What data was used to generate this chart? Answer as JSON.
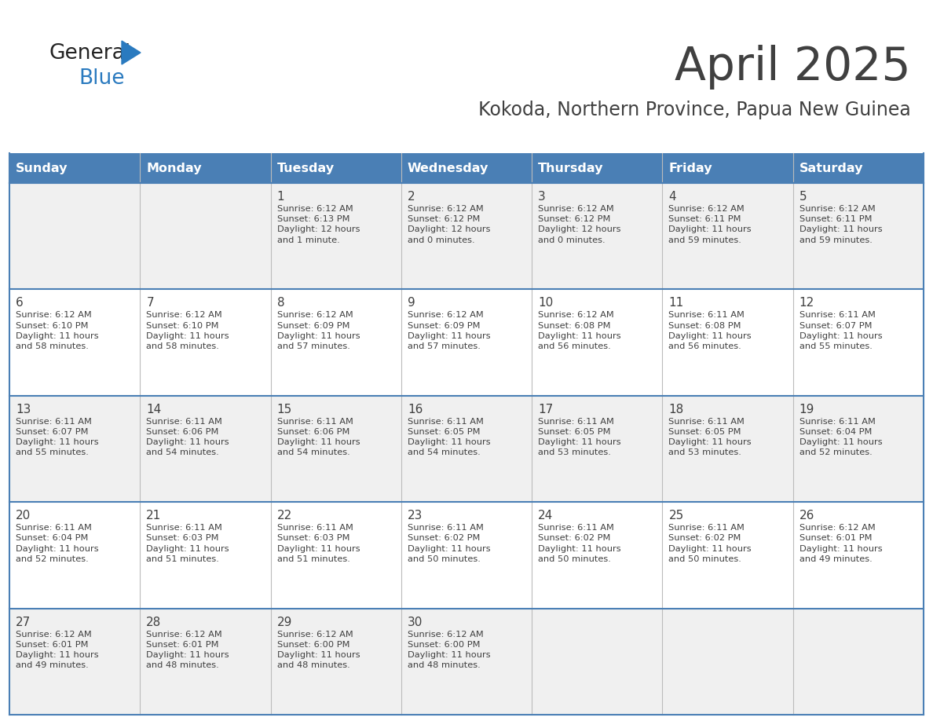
{
  "title": "April 2025",
  "subtitle": "Kokoda, Northern Province, Papua New Guinea",
  "header_color": "#4a7fb5",
  "header_text_color": "#ffffff",
  "cell_bg_white": "#ffffff",
  "cell_bg_gray": "#f0f0f0",
  "border_color": "#4a7fb5",
  "text_color": "#404040",
  "days_of_week": [
    "Sunday",
    "Monday",
    "Tuesday",
    "Wednesday",
    "Thursday",
    "Friday",
    "Saturday"
  ],
  "calendar_data": [
    [
      {
        "day": "",
        "info": ""
      },
      {
        "day": "",
        "info": ""
      },
      {
        "day": "1",
        "info": "Sunrise: 6:12 AM\nSunset: 6:13 PM\nDaylight: 12 hours\nand 1 minute."
      },
      {
        "day": "2",
        "info": "Sunrise: 6:12 AM\nSunset: 6:12 PM\nDaylight: 12 hours\nand 0 minutes."
      },
      {
        "day": "3",
        "info": "Sunrise: 6:12 AM\nSunset: 6:12 PM\nDaylight: 12 hours\nand 0 minutes."
      },
      {
        "day": "4",
        "info": "Sunrise: 6:12 AM\nSunset: 6:11 PM\nDaylight: 11 hours\nand 59 minutes."
      },
      {
        "day": "5",
        "info": "Sunrise: 6:12 AM\nSunset: 6:11 PM\nDaylight: 11 hours\nand 59 minutes."
      }
    ],
    [
      {
        "day": "6",
        "info": "Sunrise: 6:12 AM\nSunset: 6:10 PM\nDaylight: 11 hours\nand 58 minutes."
      },
      {
        "day": "7",
        "info": "Sunrise: 6:12 AM\nSunset: 6:10 PM\nDaylight: 11 hours\nand 58 minutes."
      },
      {
        "day": "8",
        "info": "Sunrise: 6:12 AM\nSunset: 6:09 PM\nDaylight: 11 hours\nand 57 minutes."
      },
      {
        "day": "9",
        "info": "Sunrise: 6:12 AM\nSunset: 6:09 PM\nDaylight: 11 hours\nand 57 minutes."
      },
      {
        "day": "10",
        "info": "Sunrise: 6:12 AM\nSunset: 6:08 PM\nDaylight: 11 hours\nand 56 minutes."
      },
      {
        "day": "11",
        "info": "Sunrise: 6:11 AM\nSunset: 6:08 PM\nDaylight: 11 hours\nand 56 minutes."
      },
      {
        "day": "12",
        "info": "Sunrise: 6:11 AM\nSunset: 6:07 PM\nDaylight: 11 hours\nand 55 minutes."
      }
    ],
    [
      {
        "day": "13",
        "info": "Sunrise: 6:11 AM\nSunset: 6:07 PM\nDaylight: 11 hours\nand 55 minutes."
      },
      {
        "day": "14",
        "info": "Sunrise: 6:11 AM\nSunset: 6:06 PM\nDaylight: 11 hours\nand 54 minutes."
      },
      {
        "day": "15",
        "info": "Sunrise: 6:11 AM\nSunset: 6:06 PM\nDaylight: 11 hours\nand 54 minutes."
      },
      {
        "day": "16",
        "info": "Sunrise: 6:11 AM\nSunset: 6:05 PM\nDaylight: 11 hours\nand 54 minutes."
      },
      {
        "day": "17",
        "info": "Sunrise: 6:11 AM\nSunset: 6:05 PM\nDaylight: 11 hours\nand 53 minutes."
      },
      {
        "day": "18",
        "info": "Sunrise: 6:11 AM\nSunset: 6:05 PM\nDaylight: 11 hours\nand 53 minutes."
      },
      {
        "day": "19",
        "info": "Sunrise: 6:11 AM\nSunset: 6:04 PM\nDaylight: 11 hours\nand 52 minutes."
      }
    ],
    [
      {
        "day": "20",
        "info": "Sunrise: 6:11 AM\nSunset: 6:04 PM\nDaylight: 11 hours\nand 52 minutes."
      },
      {
        "day": "21",
        "info": "Sunrise: 6:11 AM\nSunset: 6:03 PM\nDaylight: 11 hours\nand 51 minutes."
      },
      {
        "day": "22",
        "info": "Sunrise: 6:11 AM\nSunset: 6:03 PM\nDaylight: 11 hours\nand 51 minutes."
      },
      {
        "day": "23",
        "info": "Sunrise: 6:11 AM\nSunset: 6:02 PM\nDaylight: 11 hours\nand 50 minutes."
      },
      {
        "day": "24",
        "info": "Sunrise: 6:11 AM\nSunset: 6:02 PM\nDaylight: 11 hours\nand 50 minutes."
      },
      {
        "day": "25",
        "info": "Sunrise: 6:11 AM\nSunset: 6:02 PM\nDaylight: 11 hours\nand 50 minutes."
      },
      {
        "day": "26",
        "info": "Sunrise: 6:12 AM\nSunset: 6:01 PM\nDaylight: 11 hours\nand 49 minutes."
      }
    ],
    [
      {
        "day": "27",
        "info": "Sunrise: 6:12 AM\nSunset: 6:01 PM\nDaylight: 11 hours\nand 49 minutes."
      },
      {
        "day": "28",
        "info": "Sunrise: 6:12 AM\nSunset: 6:01 PM\nDaylight: 11 hours\nand 48 minutes."
      },
      {
        "day": "29",
        "info": "Sunrise: 6:12 AM\nSunset: 6:00 PM\nDaylight: 11 hours\nand 48 minutes."
      },
      {
        "day": "30",
        "info": "Sunrise: 6:12 AM\nSunset: 6:00 PM\nDaylight: 11 hours\nand 48 minutes."
      },
      {
        "day": "",
        "info": ""
      },
      {
        "day": "",
        "info": ""
      },
      {
        "day": "",
        "info": ""
      }
    ]
  ],
  "logo_general_color": "#222222",
  "logo_blue_color": "#2a7abf"
}
